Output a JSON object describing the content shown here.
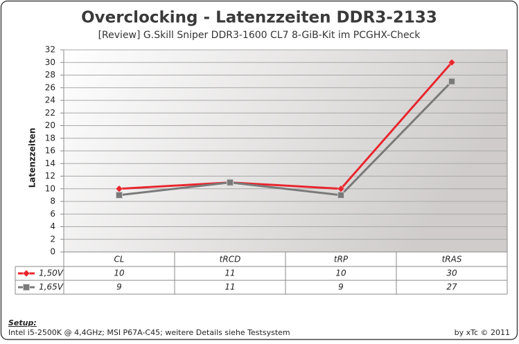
{
  "chart_data": {
    "type": "line",
    "title": "Overclocking - Latenzzeiten DDR3-2133",
    "subtitle": "[Review] G.Skill Sniper  DDR3-1600 CL7 8-GiB-Kit im PCGHX-Check",
    "y_label": "Latenzzeiten",
    "categories": [
      "CL",
      "tRCD",
      "tRP",
      "tRAS"
    ],
    "series": [
      {
        "name": "1,50V",
        "color": "#e8262e",
        "marker": "diamond",
        "values": [
          10,
          11,
          10,
          30
        ]
      },
      {
        "name": "1,65V",
        "color": "#7a7a7a",
        "marker": "square",
        "values": [
          9,
          11,
          9,
          27
        ]
      }
    ],
    "ylim": [
      0,
      32
    ],
    "yticks": [
      0,
      2,
      4,
      6,
      8,
      10,
      12,
      14,
      16,
      18,
      20,
      22,
      24,
      26,
      28,
      30,
      32
    ],
    "grid": true,
    "footer": {
      "setup_label": "Setup:",
      "setup_text": "Intel i5-2500K @ 4,4GHz; MSI P67A-C45; weitere Details siehe Testsystem",
      "credit": "by xTc © 2011"
    }
  }
}
